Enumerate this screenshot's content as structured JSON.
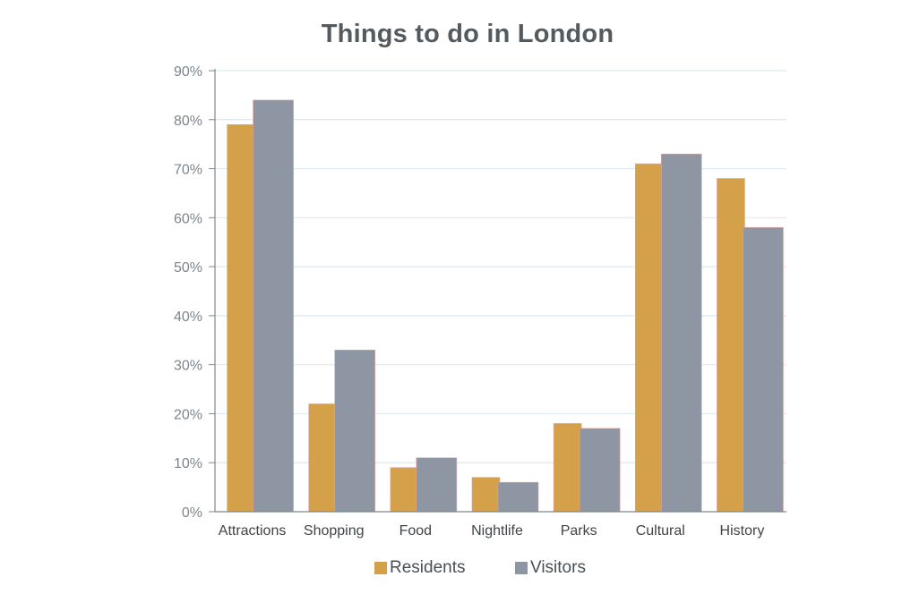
{
  "colors": {
    "residents": "#d4a04a",
    "visitors": "#8e96a3",
    "grid": "#dce9ee",
    "axis": "#7f8890",
    "tick_text": "#7d858c",
    "category_text": "#3f4448"
  },
  "chart_data": {
    "type": "bar",
    "title": "Things to do in London",
    "xlabel": "",
    "ylabel": "",
    "ylim": [
      0,
      90
    ],
    "yticks": [
      "0%",
      "10%",
      "20%",
      "30%",
      "40%",
      "50%",
      "60%",
      "70%",
      "80%",
      "90%"
    ],
    "grid": true,
    "legend_position": "bottom",
    "categories": [
      "Attractions",
      "Shopping",
      "Food",
      "Nightlife",
      "Parks",
      "Cultural",
      "History"
    ],
    "series": [
      {
        "name": "Residents",
        "color": "#d4a04a",
        "values": [
          79,
          22,
          9,
          7,
          18,
          71,
          68
        ]
      },
      {
        "name": "Visitors",
        "color": "#8e96a3",
        "values": [
          84,
          33,
          11,
          6,
          17,
          73,
          58
        ]
      }
    ]
  }
}
